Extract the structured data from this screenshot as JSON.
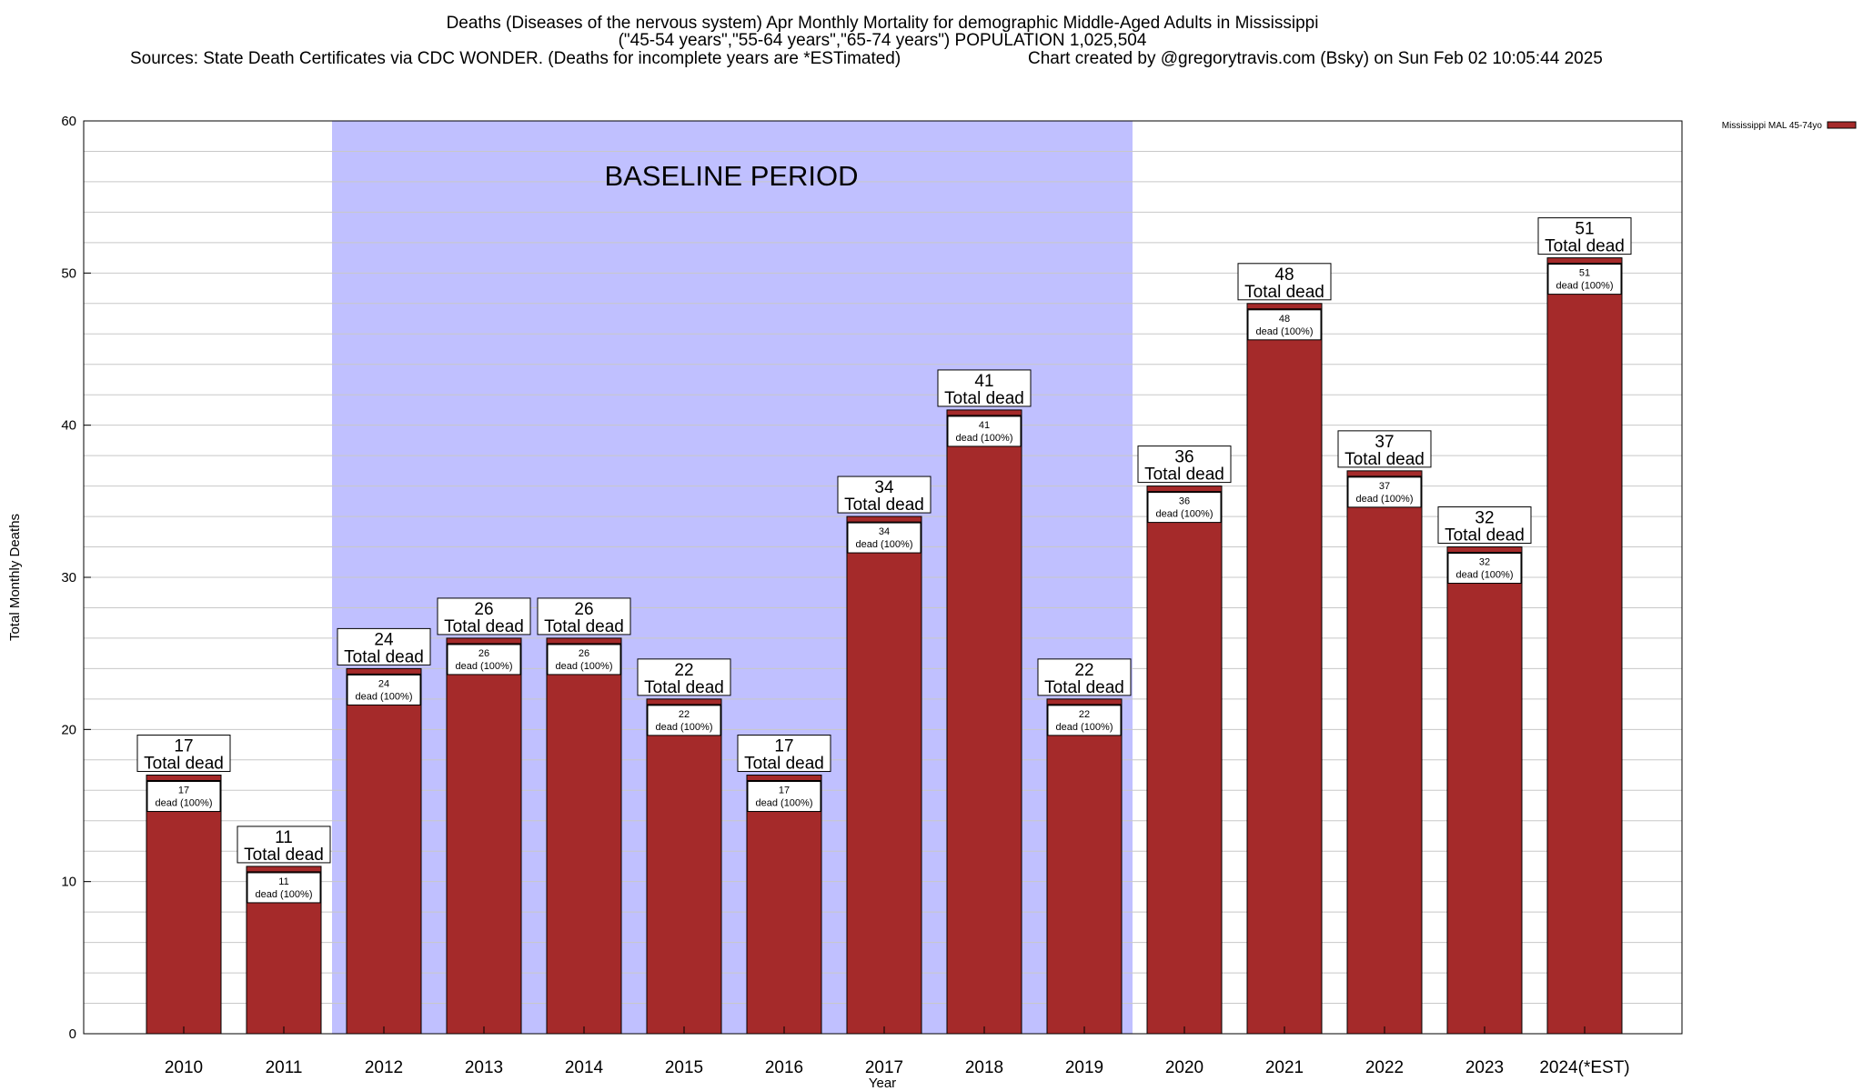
{
  "chart_data": {
    "type": "bar",
    "title": "Deaths (Diseases of the nervous system) Apr Monthly Mortality for demographic Middle-Aged Adults in Mississippi",
    "subtitle": "(\"45-54 years\",\"55-64 years\",\"65-74 years\") POPULATION 1,025,504",
    "sources": "Sources: State Death Certificates via CDC WONDER. (Deaths for incomplete years are *ESTimated)",
    "credit": "Chart created by @gregorytravis.com (Bsky) on Sun Feb 02 10:05:44 2025",
    "xlabel": "Year",
    "ylabel": "Total Monthly Deaths",
    "ylim": [
      0,
      60
    ],
    "yticks": [
      0,
      10,
      20,
      30,
      40,
      50,
      60
    ],
    "categories": [
      "2010",
      "2011",
      "2012",
      "2013",
      "2014",
      "2015",
      "2016",
      "2017",
      "2018",
      "2019",
      "2020",
      "2021",
      "2022",
      "2023",
      "2024(*EST)"
    ],
    "series": [
      {
        "name": "Mississippi MAL 45-74yo",
        "values": [
          17,
          11,
          24,
          26,
          26,
          22,
          17,
          34,
          41,
          22,
          36,
          48,
          37,
          32,
          51
        ]
      }
    ],
    "total_label": "Total dead",
    "inner_label": "dead (100%)",
    "baseline": {
      "label": "BASELINE PERIOD",
      "from": "2012",
      "to": "2019"
    },
    "grid": true,
    "legend_position": "top-right",
    "colors": {
      "bar": "#a52a2a",
      "baseline": "#c0c0ff",
      "grid": "#c8c8c8"
    }
  }
}
